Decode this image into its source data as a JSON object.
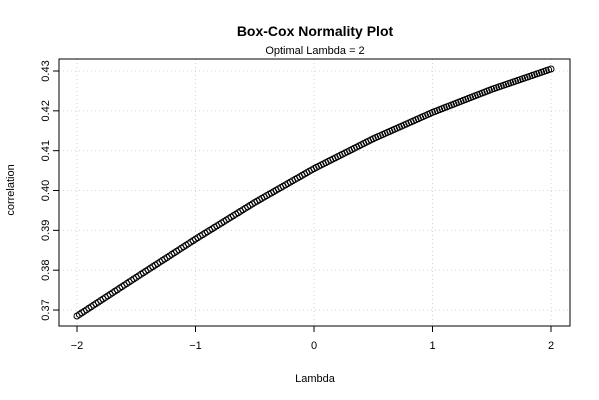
{
  "chart_data": {
    "type": "scatter",
    "title": "Box-Cox Normality Plot",
    "subtitle": "Optimal Lambda = 2",
    "xlabel": "Lambda",
    "ylabel": "correlation",
    "xlim": [
      -2,
      2
    ],
    "ylim": [
      0.3685,
      0.4305
    ],
    "xticks": [
      -2,
      -1,
      0,
      1,
      2
    ],
    "xtick_labels": [
      "−2",
      "−1",
      "0",
      "1",
      "2"
    ],
    "yticks": [
      0.37,
      0.38,
      0.39,
      0.4,
      0.41,
      0.42,
      0.43
    ],
    "ytick_labels": [
      "0.37",
      "0.38",
      "0.39",
      "0.40",
      "0.41",
      "0.42",
      "0.43"
    ],
    "grid": true,
    "marker": "open-circle",
    "point_color": "#000000",
    "grid_color": "#d3d3d3",
    "point_count": 201,
    "x_range": [
      -2,
      2
    ],
    "curve_anchors": {
      "x": [
        -2,
        -1.5,
        -1,
        -0.5,
        0,
        0.5,
        1,
        1.5,
        2
      ],
      "y": [
        0.3685,
        0.3782,
        0.3878,
        0.397,
        0.4055,
        0.413,
        0.4196,
        0.4254,
        0.4305
      ]
    }
  }
}
